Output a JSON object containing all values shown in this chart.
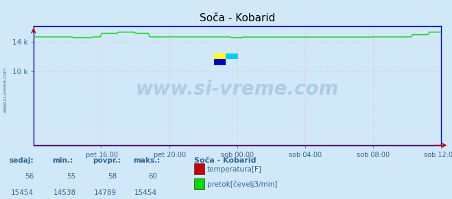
{
  "title": "Soča - Kobarid",
  "bg_color": "#d0e8f8",
  "plot_bg_color": "#d0e8f8",
  "border_color": "#0000cc",
  "tick_color": "#336699",
  "text_color": "#336699",
  "bold_text_color": "#004499",
  "watermark_text": "www.si-vreme.com",
  "watermark_color": "#5588bb",
  "watermark_alpha": 0.28,
  "x_tick_labels": [
    "pet 16:00",
    "pet 20:00",
    "sob 00:00",
    "sob 04:00",
    "sob 08:00",
    "sob 12:00"
  ],
  "x_tick_positions": [
    0.1667,
    0.3333,
    0.5,
    0.6667,
    0.8333,
    1.0
  ],
  "ylim_max": 16200,
  "flow_color": "#00dd00",
  "temp_color": "#cc0000",
  "grid_dot_color": "#ffbbbb",
  "legend_title": "Soča - Kobarid",
  "legend_items": [
    "temperatura[F]",
    "pretok[čevelj3/min]"
  ],
  "legend_colors": [
    "#cc0000",
    "#00dd00"
  ],
  "table_headers": [
    "sedaj:",
    "min.:",
    "povpr.:",
    "maks.:"
  ],
  "table_row1": [
    "56",
    "55",
    "58",
    "60"
  ],
  "table_row2": [
    "15454",
    "14538",
    "14789",
    "15454"
  ]
}
